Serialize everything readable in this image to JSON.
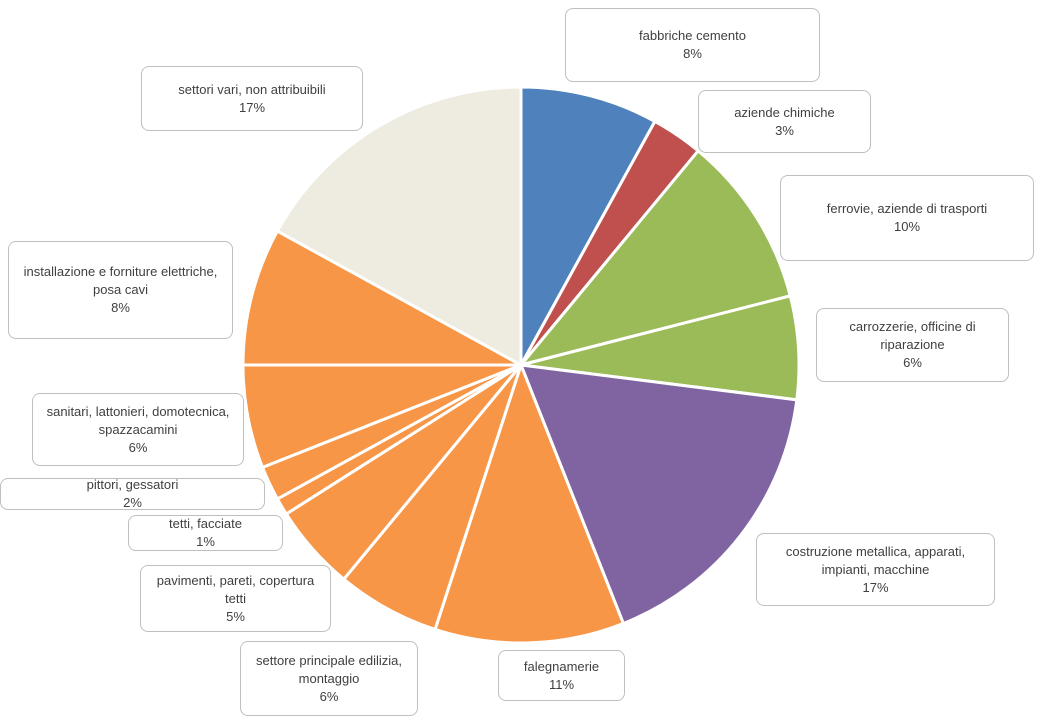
{
  "chart_data": {
    "type": "pie",
    "categories": [
      "fabbriche cemento",
      "aziende chimiche",
      "ferrovie, aziende di trasporti",
      "carrozzerie, officine di riparazione",
      "costruzione metallica, apparati, impianti, macchine",
      "falegnamerie",
      "settore principale edilizia, montaggio",
      "pavimenti, pareti, copertura tetti",
      "tetti, facciate",
      "pittori, gessatori",
      "sanitari, lattonieri, domotecnica, spazzacamini",
      "installazione e forniture elettriche, posa cavi",
      "settori vari, non attribuibili"
    ],
    "values": [
      8,
      3,
      10,
      6,
      17,
      11,
      6,
      5,
      1,
      2,
      6,
      8,
      17
    ],
    "value_labels": [
      "8%",
      "3%",
      "10%",
      "6%",
      "17%",
      "11%",
      "6%",
      "5%",
      "1%",
      "2%",
      "6%",
      "8%",
      "17%"
    ],
    "colors": [
      "#4f81bd",
      "#c0504d",
      "#9bbb59",
      "#9bbb59",
      "#8064a2",
      "#f79646",
      "#f79646",
      "#f79646",
      "#f79646",
      "#f79646",
      "#f79646",
      "#f79646",
      "#eeece1"
    ]
  }
}
